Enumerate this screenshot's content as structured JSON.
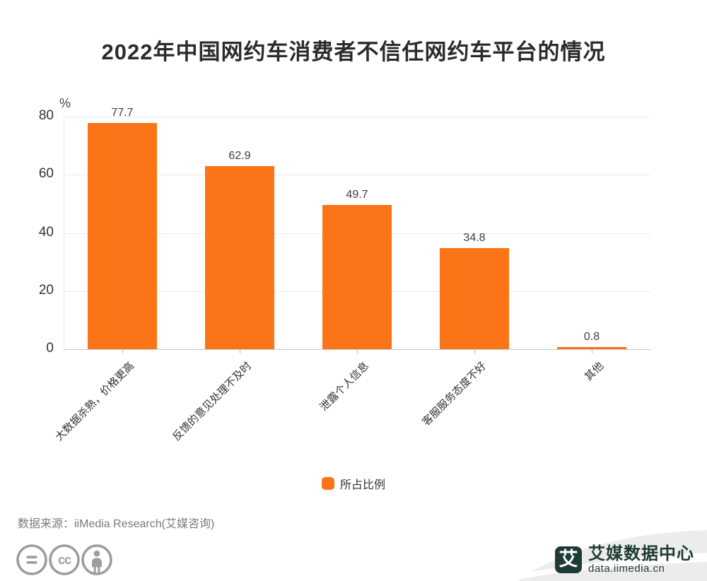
{
  "title": "2022年中国网约车消费者不信任网约车平台的情况",
  "chart_data": {
    "type": "bar",
    "categories": [
      "大数据杀熟，价格更高",
      "反馈的意见处理不及时",
      "泄露个人信息",
      "客服服务态度不好",
      "其他"
    ],
    "values": [
      77.7,
      62.9,
      49.7,
      34.8,
      0.8
    ],
    "series_name": "所占比例",
    "unit_label": "%",
    "y_ticks": [
      0,
      20,
      40,
      60,
      80
    ],
    "ylim": [
      0,
      80
    ],
    "bar_color": "#fb7418",
    "grid": true,
    "legend_position": "bottom",
    "value_labels_shown": true
  },
  "legend": {
    "label": "所占比例",
    "color": "#fb7418"
  },
  "source": "数据来源：iiMedia Research(艾媒咨询)",
  "footer": {
    "license_icons": [
      "equals-icon",
      "cc-icon",
      "attribution-icon"
    ],
    "icon_color": "#9d9d9d",
    "brand": {
      "name": "艾媒数据中心",
      "url_text": "data.iimedia.cn",
      "logo_char": "艾",
      "color": "#1f3b35"
    }
  }
}
